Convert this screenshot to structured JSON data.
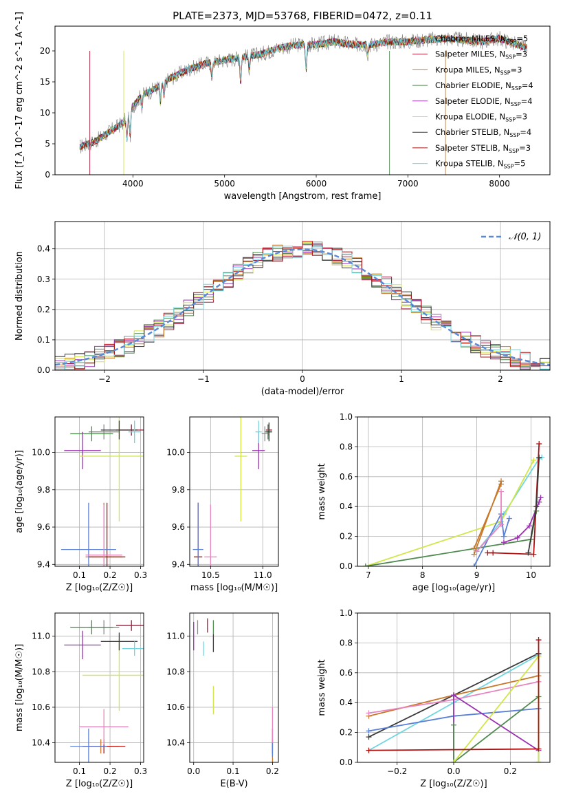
{
  "figure_title": "PLATE=2373, MJD=53768, FIBERID=0472, z=0.11",
  "models": [
    {
      "color": "#8c8c8c",
      "label": "Chabrier MILES, N",
      "sub": "SSP",
      "eq": "=5"
    },
    {
      "color": "#a51c3c",
      "label": "Salpeter MILES, N",
      "sub": "SSP",
      "eq": "=3"
    },
    {
      "color": "#c8782a",
      "label": "Kroupa MILES, N",
      "sub": "SSP",
      "eq": "=3"
    },
    {
      "color": "#4f8a4f",
      "label": "Chabrier ELODIE, N",
      "sub": "SSP",
      "eq": "=4"
    },
    {
      "color": "#9b30b0",
      "label": "Salpeter ELODIE, N",
      "sub": "SSP",
      "eq": "=4"
    },
    {
      "color": "#d2e64a",
      "label": "Kroupa ELODIE, N",
      "sub": "SSP",
      "eq": "=3"
    },
    {
      "color": "#3a3a3a",
      "label": "Chabrier STELIB, N",
      "sub": "SSP",
      "eq": "=4"
    },
    {
      "color": "#b01010",
      "label": "Salpeter STELIB, N",
      "sub": "SSP",
      "eq": "=3"
    },
    {
      "color": "#6fd6e0",
      "label": "Kroupa STELIB, N",
      "sub": "SSP",
      "eq": "=5"
    }
  ],
  "chart_data": [
    {
      "id": "spectrum",
      "type": "line",
      "xlabel": "wavelength [Angstrom, rest frame]",
      "ylabel": "Flux [f_λ 10^-17 erg cm^-2 s^-1 A^-1]",
      "xlim": [
        3150,
        8550
      ],
      "ylim": [
        0,
        24
      ],
      "xticks": [
        4000,
        5000,
        6000,
        7000,
        8000
      ],
      "yticks": [
        0,
        5,
        10,
        15,
        20
      ],
      "continuum": {
        "x": [
          3420,
          3600,
          3700,
          3800,
          3900,
          4000,
          4100,
          4200,
          4300,
          4400,
          4600,
          4800,
          5000,
          5200,
          5400,
          5600,
          5800,
          6000,
          6200,
          6400,
          6600,
          6800,
          7000,
          7200,
          7400,
          7600,
          7800,
          8000,
          8200,
          8300
        ],
        "y": [
          4.5,
          5.5,
          6.5,
          7.5,
          8.5,
          11,
          13,
          13.5,
          14.5,
          15.5,
          17,
          18,
          18.5,
          19,
          19.5,
          20.5,
          21,
          21,
          21.5,
          21,
          21,
          21.5,
          21.5,
          21.8,
          22,
          21.8,
          21.5,
          22,
          21,
          20.5
        ]
      }
    },
    {
      "id": "residuals",
      "type": "line",
      "xlabel": "(data-model)/error",
      "ylabel": "Normed distribution",
      "xlim": [
        -2.5,
        2.5
      ],
      "ylim": [
        0,
        0.49
      ],
      "xticks": [
        -2,
        -1,
        0,
        1,
        2
      ],
      "yticks": [
        0.0,
        0.1,
        0.2,
        0.3,
        0.4
      ],
      "reference_label": "𝒩(0, 1)",
      "reference": {
        "mean": 0,
        "sigma": 1
      }
    },
    {
      "id": "age-vs-Z",
      "type": "scatter",
      "xlabel": "Z [log₁₀(Z/Z☉)]",
      "ylabel": "age  [log₁₀(age/yr)]",
      "xlim": [
        0.02,
        0.31
      ],
      "ylim": [
        9.39,
        10.19
      ],
      "xticks": [
        0.1,
        0.2,
        0.3
      ],
      "yticks": [
        9.4,
        9.6,
        9.8,
        10.0
      ],
      "points": [
        {
          "m": 0,
          "x": 0.18,
          "y": 10.11,
          "ex": 0.05,
          "ey": 0.04
        },
        {
          "m": 1,
          "x": 0.27,
          "y": 10.12,
          "ex": 0.05,
          "ey": 0.03
        },
        {
          "m": 2,
          "x": 0.18,
          "y": 9.44,
          "ex": 0.06,
          "ey": 0.29
        },
        {
          "m": 3,
          "x": 0.14,
          "y": 10.1,
          "ex": 0.07,
          "ey": 0.04
        },
        {
          "m": 4,
          "x": 0.11,
          "y": 10.01,
          "ex": 0.06,
          "ey": 0.1
        },
        {
          "m": 5,
          "x": 0.23,
          "y": 9.98,
          "ex": 0.13,
          "ey": 0.35
        },
        {
          "m": 6,
          "x": 0.23,
          "y": 10.12,
          "ex": 0.06,
          "ey": 0.05
        },
        {
          "m": 7,
          "x": 0.19,
          "y": 9.44,
          "ex": 0.06,
          "ey": 0.29
        },
        {
          "m": 8,
          "x": 0.28,
          "y": 10.11,
          "ex": 0.02,
          "ey": 0.06
        },
        {
          "m": "blue",
          "x": 0.13,
          "y": 9.48,
          "ex": 0.09,
          "ey": 0.25
        },
        {
          "m": "pink",
          "x": 0.18,
          "y": 9.45,
          "ex": 0.06,
          "ey": 0.27
        }
      ]
    },
    {
      "id": "age-vs-mass",
      "type": "scatter",
      "xlabel": "mass [log₁₀(M/M☉)]",
      "ylabel": "",
      "xlim": [
        10.3,
        11.15
      ],
      "ylim": [
        9.39,
        10.19
      ],
      "xticks": [
        10.5,
        11.0
      ],
      "yticks": [
        9.4,
        9.6,
        9.8,
        10.0
      ],
      "points": [
        {
          "m": 0,
          "x": 11.02,
          "y": 10.1,
          "ex": 0.03,
          "ey": 0.04
        },
        {
          "m": 1,
          "x": 11.06,
          "y": 10.12,
          "ex": 0.03,
          "ey": 0.03
        },
        {
          "m": 2,
          "x": 10.38,
          "y": 9.44,
          "ex": 0.04,
          "ey": 0.29
        },
        {
          "m": 3,
          "x": 11.05,
          "y": 10.11,
          "ex": 0.03,
          "ey": 0.04
        },
        {
          "m": 4,
          "x": 10.96,
          "y": 10.01,
          "ex": 0.06,
          "ey": 0.1
        },
        {
          "m": 5,
          "x": 10.79,
          "y": 9.98,
          "ex": 0.06,
          "ey": 0.35
        },
        {
          "m": 6,
          "x": 11.06,
          "y": 10.11,
          "ex": 0.03,
          "ey": 0.05
        },
        {
          "m": 7,
          "x": 10.38,
          "y": 9.44,
          "ex": 0.04,
          "ey": 0.29
        },
        {
          "m": 8,
          "x": 10.96,
          "y": 10.11,
          "ex": 0.03,
          "ey": 0.06
        },
        {
          "m": "blue",
          "x": 10.38,
          "y": 9.48,
          "ex": 0.05,
          "ey": 0.25
        },
        {
          "m": "pink",
          "x": 10.5,
          "y": 9.44,
          "ex": 0.06,
          "ey": 0.28
        }
      ]
    },
    {
      "id": "weight-vs-age",
      "type": "line",
      "xlabel": "age  [log₁₀(age/yr)]",
      "ylabel": "mass weight",
      "xlim": [
        6.8,
        10.35
      ],
      "ylim": [
        0,
        1.0
      ],
      "xticks": [
        7,
        8,
        9,
        10
      ],
      "yticks": [
        0.0,
        0.2,
        0.4,
        0.6,
        0.8,
        1.0
      ],
      "series": [
        {
          "m": 8,
          "x": [
            9.0,
            9.45,
            9.5,
            10.15,
            10.2
          ],
          "y": [
            0.1,
            0.3,
            0.35,
            0.72,
            0.73
          ]
        },
        {
          "m": 5,
          "x": [
            6.95,
            9.45,
            10.05
          ],
          "y": [
            0.0,
            0.3,
            0.71
          ]
        },
        {
          "m": 3,
          "x": [
            6.95,
            10.0,
            10.1
          ],
          "y": [
            0.0,
            0.18,
            0.37
          ]
        },
        {
          "m": "blue",
          "x": [
            8.95,
            9.45,
            9.5,
            9.6
          ],
          "y": [
            0.0,
            0.35,
            0.2,
            0.32
          ]
        },
        {
          "m": 2,
          "x": [
            8.95,
            9.45,
            9.45,
            8.95
          ],
          "y": [
            0.08,
            0.57,
            0.55,
            0.12
          ]
        },
        {
          "m": "pink",
          "x": [
            9.0,
            9.45,
            9.45
          ],
          "y": [
            0.1,
            0.28,
            0.5
          ]
        },
        {
          "m": 4,
          "x": [
            9.5,
            9.75,
            9.97,
            10.15,
            10.18
          ],
          "y": [
            0.16,
            0.19,
            0.27,
            0.43,
            0.46
          ]
        },
        {
          "m": 7,
          "x": [
            9.2,
            9.3,
            10.05,
            10.15
          ],
          "y": [
            0.09,
            0.09,
            0.08,
            0.82
          ]
        },
        {
          "m": 6,
          "x": [
            9.95,
            10.1,
            10.15
          ],
          "y": [
            0.09,
            0.4,
            0.73
          ]
        }
      ]
    },
    {
      "id": "mass-vs-Z",
      "type": "scatter",
      "xlabel": "Z [log₁₀(Z/Z☉)]",
      "ylabel": "mass [log₁₀(M/M☉)]",
      "xlim": [
        0.02,
        0.31
      ],
      "ylim": [
        10.29,
        11.13
      ],
      "xticks": [
        0.1,
        0.2,
        0.3
      ],
      "yticks": [
        10.4,
        10.6,
        10.8,
        11.0
      ],
      "points": [
        {
          "m": 0,
          "x": 0.18,
          "y": 11.05,
          "ex": 0.05,
          "ey": 0.04
        },
        {
          "m": 1,
          "x": 0.27,
          "y": 11.06,
          "ex": 0.05,
          "ey": 0.03
        },
        {
          "m": 2,
          "x": 0.17,
          "y": 10.38,
          "ex": 0.06,
          "ey": 0.04
        },
        {
          "m": 3,
          "x": 0.14,
          "y": 11.05,
          "ex": 0.07,
          "ey": 0.04
        },
        {
          "m": 4,
          "x": 0.11,
          "y": 10.95,
          "ex": 0.06,
          "ey": 0.08
        },
        {
          "m": 5,
          "x": 0.23,
          "y": 10.78,
          "ex": 0.12,
          "ey": 0.2
        },
        {
          "m": 6,
          "x": 0.23,
          "y": 10.97,
          "ex": 0.06,
          "ey": 0.05
        },
        {
          "m": 7,
          "x": 0.18,
          "y": 10.38,
          "ex": 0.07,
          "ey": 0.04
        },
        {
          "m": 8,
          "x": 0.28,
          "y": 10.93,
          "ex": 0.04,
          "ey": 0.04
        },
        {
          "m": "blue",
          "x": 0.13,
          "y": 10.38,
          "ex": 0.06,
          "ey": 0.1
        },
        {
          "m": "pink",
          "x": 0.18,
          "y": 10.49,
          "ex": 0.08,
          "ey": 0.1
        }
      ]
    },
    {
      "id": "mass-vs-EBV",
      "type": "scatter",
      "xlabel": "E(B-V)",
      "ylabel": "",
      "xlim": [
        -0.01,
        0.215
      ],
      "ylim": [
        10.29,
        11.13
      ],
      "xticks": [
        0.0,
        0.1,
        0.2
      ],
      "yticks": [
        10.4,
        10.6,
        10.8,
        11.0
      ],
      "points": [
        {
          "m": 0,
          "x": 0.01,
          "y": 11.05,
          "ex": 0,
          "ey": 0.04
        },
        {
          "m": 1,
          "x": 0.035,
          "y": 11.06,
          "ex": 0,
          "ey": 0.04
        },
        {
          "m": 2,
          "x": 0.2,
          "y": 10.38,
          "ex": 0,
          "ey": 0.1
        },
        {
          "m": 3,
          "x": 0.05,
          "y": 11.05,
          "ex": 0,
          "ey": 0.04
        },
        {
          "m": 4,
          "x": 0.0,
          "y": 11.0,
          "ex": 0,
          "ey": 0.08
        },
        {
          "m": 5,
          "x": 0.05,
          "y": 10.64,
          "ex": 0,
          "ey": 0.08
        },
        {
          "m": 6,
          "x": 0.05,
          "y": 10.96,
          "ex": 0,
          "ey": 0.05
        },
        {
          "m": 7,
          "x": 0.2,
          "y": 10.38,
          "ex": 0,
          "ey": 0.04
        },
        {
          "m": 8,
          "x": 0.025,
          "y": 10.93,
          "ex": 0,
          "ey": 0.04
        },
        {
          "m": "blue",
          "x": 0.2,
          "y": 10.4,
          "ex": 0,
          "ey": 0.08
        },
        {
          "m": "pink",
          "x": 0.2,
          "y": 10.5,
          "ex": 0,
          "ey": 0.1
        }
      ]
    },
    {
      "id": "weight-vs-Z",
      "type": "line",
      "xlabel": "Z [log₁₀(Z/Z☉)]",
      "ylabel": "mass weight",
      "xlim": [
        -0.34,
        0.34
      ],
      "ylim": [
        0,
        1.0
      ],
      "xticks": [
        -0.2,
        0.0,
        0.2
      ],
      "yticks": [
        0.0,
        0.2,
        0.4,
        0.6,
        0.8,
        1.0
      ],
      "series": [
        {
          "m": 6,
          "x": [
            -0.3,
            0.0,
            0.3
          ],
          "y": [
            0.17,
            0.45,
            0.73
          ]
        },
        {
          "m": 8,
          "x": [
            -0.3,
            0.0,
            0.3,
            0.3
          ],
          "y": [
            0.08,
            0.4,
            0.72,
            0.0
          ]
        },
        {
          "m": 2,
          "x": [
            -0.3,
            0.0,
            0.3
          ],
          "y": [
            0.31,
            0.45,
            0.58
          ]
        },
        {
          "m": "pink",
          "x": [
            -0.3,
            0.0,
            0.3
          ],
          "y": [
            0.33,
            0.42,
            0.54
          ]
        },
        {
          "m": "blue",
          "x": [
            -0.3,
            0.0,
            0.3
          ],
          "y": [
            0.21,
            0.31,
            0.36
          ]
        },
        {
          "m": 4,
          "x": [
            0.0,
            0.0,
            0.3,
            0.3
          ],
          "y": [
            0.0,
            0.45,
            0.08,
            0.0
          ]
        },
        {
          "m": 3,
          "x": [
            0.0,
            0.0,
            0.3,
            0.3
          ],
          "y": [
            0.25,
            0.0,
            0.44,
            0.0
          ]
        },
        {
          "m": 5,
          "x": [
            0.0,
            0.3,
            0.3
          ],
          "y": [
            0.0,
            0.71,
            0.0
          ]
        },
        {
          "m": 7,
          "x": [
            -0.3,
            0.3,
            0.3
          ],
          "y": [
            0.08,
            0.09,
            0.82
          ]
        }
      ]
    }
  ]
}
